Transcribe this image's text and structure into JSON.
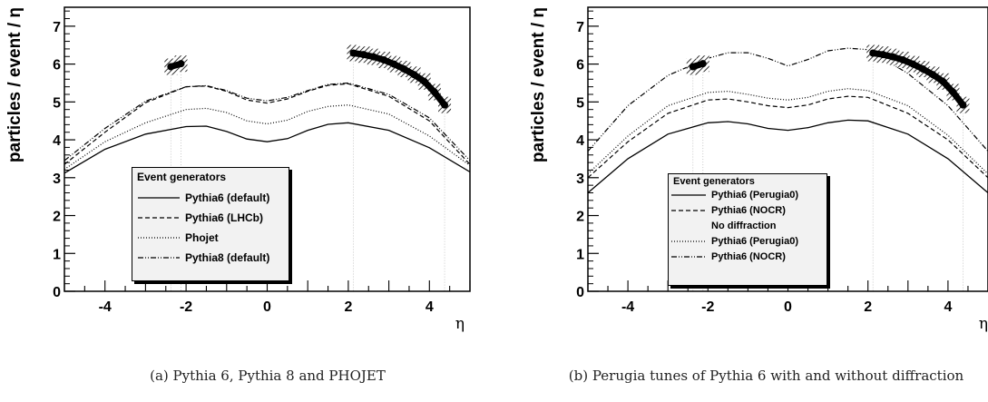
{
  "chart_data": [
    {
      "type": "line",
      "caption": "(a) Pythia 6, Pythia 8 and PHOJET",
      "xlabel": "η",
      "ylabel": "particles / event / η",
      "xlim": [
        -5,
        5
      ],
      "ylim": [
        0,
        7.5
      ],
      "xticks": [
        "-4",
        "-2",
        "0",
        "2",
        "4"
      ],
      "yticks": [
        "0",
        "1",
        "2",
        "3",
        "4",
        "5",
        "6",
        "7"
      ],
      "legend_title": "Event generators",
      "data_points": {
        "x": [
          -2.375,
          -2.125,
          2.125,
          2.375,
          2.625,
          2.875,
          3.125,
          3.375,
          3.625,
          3.875,
          4.125,
          4.375
        ],
        "y": [
          5.93,
          6.01,
          6.29,
          6.25,
          6.19,
          6.11,
          6.0,
          5.87,
          5.72,
          5.54,
          5.26,
          4.92
        ]
      },
      "series": [
        {
          "name": "Pythia6 (default)",
          "style": "solid",
          "x": [
            -5,
            -4,
            -3,
            -2,
            -1.5,
            -1,
            -0.5,
            0,
            0.5,
            1,
            1.5,
            2,
            3,
            4,
            5
          ],
          "y": [
            3.12,
            3.75,
            4.15,
            4.35,
            4.36,
            4.22,
            4.02,
            3.95,
            4.03,
            4.25,
            4.41,
            4.45,
            4.25,
            3.79,
            3.15
          ]
        },
        {
          "name": "Pythia6 (LHCb)",
          "style": "dashed",
          "x": [
            -5,
            -4,
            -3,
            -2,
            -1.5,
            -1,
            -0.5,
            0,
            0.5,
            1,
            1.5,
            2,
            3,
            4,
            5
          ],
          "y": [
            3.35,
            4.2,
            4.98,
            5.4,
            5.42,
            5.28,
            5.05,
            4.97,
            5.08,
            5.28,
            5.44,
            5.48,
            5.15,
            4.5,
            3.35
          ]
        },
        {
          "name": "Phojet",
          "style": "dotted",
          "x": [
            -5,
            -4,
            -3,
            -2,
            -1.5,
            -1,
            -0.5,
            0,
            0.5,
            1,
            1.5,
            2,
            3,
            4,
            5
          ],
          "y": [
            3.22,
            3.95,
            4.45,
            4.8,
            4.83,
            4.72,
            4.5,
            4.42,
            4.52,
            4.75,
            4.88,
            4.92,
            4.68,
            4.1,
            3.32
          ]
        },
        {
          "name": "Pythia8 (default)",
          "style": "dashdot",
          "x": [
            -5,
            -4,
            -3,
            -2,
            -1.5,
            -1,
            -0.5,
            0,
            0.5,
            1,
            1.5,
            2,
            3,
            4,
            5
          ],
          "y": [
            3.45,
            4.3,
            5.02,
            5.4,
            5.43,
            5.3,
            5.1,
            5.03,
            5.12,
            5.3,
            5.46,
            5.5,
            5.2,
            4.58,
            3.45
          ]
        }
      ]
    },
    {
      "type": "line",
      "caption": "(b) Perugia tunes of Pythia 6 with and without diffraction",
      "xlabel": "η",
      "ylabel": "particles / event / η",
      "xlim": [
        -5,
        5
      ],
      "ylim": [
        0,
        7.5
      ],
      "xticks": [
        "-4",
        "-2",
        "0",
        "2",
        "4"
      ],
      "yticks": [
        "0",
        "1",
        "2",
        "3",
        "4",
        "5",
        "6",
        "7"
      ],
      "legend_title": "Event generators",
      "legend_subheading": "No diffraction",
      "data_points": {
        "x": [
          -2.375,
          -2.125,
          2.125,
          2.375,
          2.625,
          2.875,
          3.125,
          3.375,
          3.625,
          3.875,
          4.125,
          4.375
        ],
        "y": [
          5.93,
          6.01,
          6.29,
          6.25,
          6.19,
          6.11,
          6.0,
          5.87,
          5.72,
          5.54,
          5.26,
          4.92
        ]
      },
      "series": [
        {
          "name": "Pythia6 (Perugia0)",
          "group": "Event generators",
          "style": "solid",
          "x": [
            -5,
            -4,
            -3,
            -2,
            -1.5,
            -1,
            -0.5,
            0,
            0.5,
            1,
            1.5,
            2,
            3,
            4,
            5
          ],
          "y": [
            2.6,
            3.5,
            4.15,
            4.45,
            4.48,
            4.42,
            4.3,
            4.25,
            4.32,
            4.45,
            4.52,
            4.5,
            4.15,
            3.5,
            2.6
          ]
        },
        {
          "name": "Pythia6 (NOCR)",
          "group": "Event generators",
          "style": "dashed",
          "x": [
            -5,
            -4,
            -3,
            -2,
            -1.5,
            -1,
            -0.5,
            0,
            0.5,
            1,
            1.5,
            2,
            3,
            4,
            5
          ],
          "y": [
            3.0,
            3.95,
            4.7,
            5.05,
            5.08,
            5.0,
            4.9,
            4.85,
            4.92,
            5.08,
            5.15,
            5.12,
            4.7,
            4.0,
            3.0
          ]
        },
        {
          "name": "Pythia6 (Perugia0)",
          "group": "No diffraction",
          "style": "dotted",
          "x": [
            -5,
            -4,
            -3,
            -2,
            -1.5,
            -1,
            -0.5,
            0,
            0.5,
            1,
            1.5,
            2,
            3,
            4,
            5
          ],
          "y": [
            3.1,
            4.1,
            4.9,
            5.25,
            5.28,
            5.2,
            5.1,
            5.05,
            5.12,
            5.28,
            5.35,
            5.3,
            4.9,
            4.12,
            3.1
          ]
        },
        {
          "name": "Pythia6 (NOCR)",
          "group": "No diffraction",
          "style": "dashdot",
          "x": [
            -5,
            -4,
            -3,
            -2,
            -1.5,
            -1,
            -0.5,
            0,
            0.5,
            1,
            1.5,
            2,
            3,
            4,
            5
          ],
          "y": [
            3.7,
            4.9,
            5.7,
            6.15,
            6.3,
            6.3,
            6.15,
            5.95,
            6.12,
            6.35,
            6.42,
            6.38,
            5.75,
            4.9,
            3.7
          ]
        }
      ]
    }
  ]
}
